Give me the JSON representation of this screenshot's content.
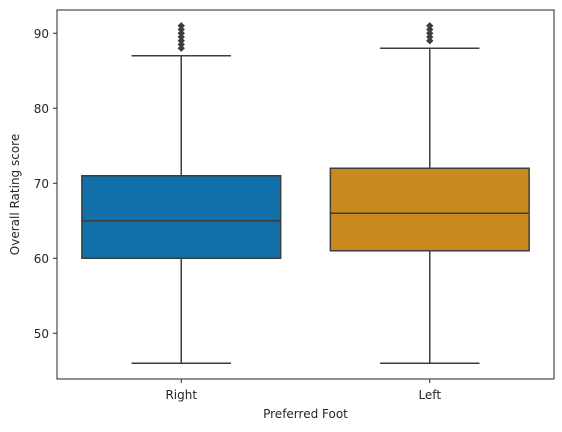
{
  "chart_data": {
    "type": "box",
    "xlabel": "Preferred Foot",
    "ylabel": "Overall Rating score",
    "ylim": [
      43.9,
      93.1
    ],
    "yticks": [
      50,
      60,
      70,
      80,
      90
    ],
    "grid": false,
    "categories": [
      "Right",
      "Left"
    ],
    "boxes": [
      {
        "category": "Right",
        "color": "#1170aa",
        "whisker_low": 46,
        "q1": 60,
        "median": 65,
        "q3": 71,
        "whisker_high": 87,
        "outliers": [
          88,
          88.5,
          89,
          89.5,
          90,
          90.5,
          91
        ]
      },
      {
        "category": "Left",
        "color": "#c88a1d",
        "whisker_low": 46,
        "q1": 61,
        "median": 66,
        "q3": 72,
        "whisker_high": 88,
        "outliers": [
          89,
          89.5,
          90,
          90.5,
          91
        ]
      }
    ],
    "line_color": "#3d3d3d"
  }
}
